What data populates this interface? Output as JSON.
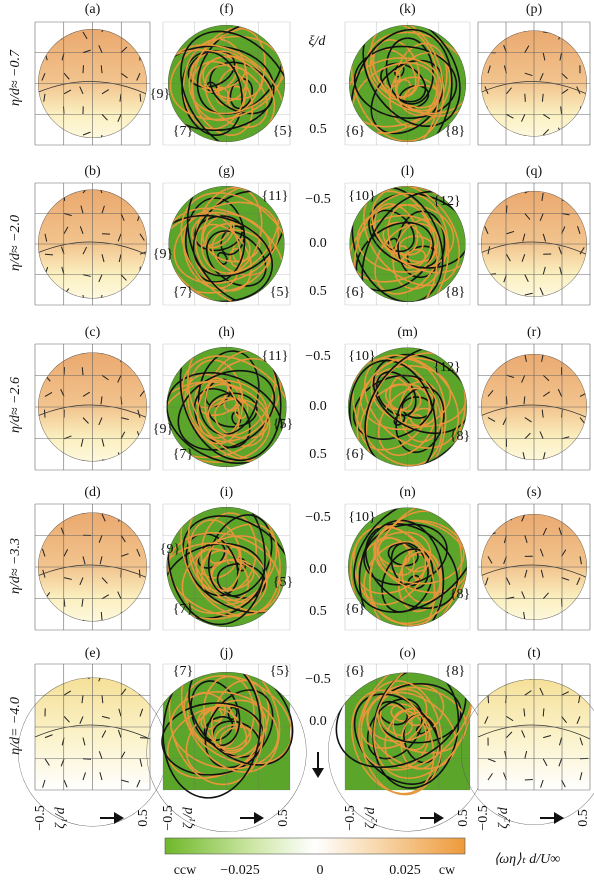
{
  "panels": [
    "(a)",
    "(b)",
    "(c)",
    "(d)",
    "(e)",
    "(f)",
    "(g)",
    "(h)",
    "(i)",
    "(j)",
    "(k)",
    "(l)",
    "(m)",
    "(n)",
    "(o)",
    "(p)",
    "(q)",
    "(r)",
    "(s)",
    "(t)"
  ],
  "row_labels": [
    "η/d≈ −0.7",
    "η/d≈ −2.0",
    "η/d≈ −2.6",
    "η/d≈ −3.3",
    "η/d= −4.0"
  ],
  "annotations": [
    [
      "{9}",
      "{7}",
      "{5}"
    ],
    [
      "{11}",
      "{9}",
      "{7}",
      "{5}"
    ],
    [
      "{11}",
      "{9}",
      "{5}",
      "{7}"
    ],
    [
      "{9}",
      "{5}",
      "{7}"
    ],
    [
      "{7}",
      "{5}"
    ],
    [
      "{6}",
      "{8}"
    ],
    [
      "{10}",
      "{12}",
      "{6}",
      "{8}"
    ],
    [
      "{10}",
      "{12}",
      "{8}",
      "{6}"
    ],
    [
      "{10}",
      "{8}",
      "{6}"
    ],
    [
      "{6}",
      "{8}"
    ]
  ],
  "middle_axis": {
    "title": "ξ/d",
    "rows": [
      [
        "0.0",
        "0.5"
      ],
      [
        "−0.5",
        "0.0",
        "0.5"
      ],
      [
        "−0.5",
        "0.0",
        "0.5"
      ],
      [
        "−0.5",
        "0.0",
        "0.5"
      ],
      [
        "−0.5",
        "0.0"
      ]
    ]
  },
  "bottom_axes": [
    {
      "min": "−0.5",
      "label": "ζ₁/d",
      "max": "0.5"
    },
    {
      "min": "−0.5",
      "label": "ζ₁/d",
      "max": "0.5"
    },
    {
      "min": "−0.5",
      "label": "ζ₂/d",
      "max": "0.5"
    },
    {
      "min": "−0.5",
      "label": "ζ₂/d",
      "max": "0.5"
    }
  ],
  "colorbar": {
    "ticks": [
      "ccw",
      "−0.025",
      "0",
      "0.025",
      "cw"
    ],
    "label": "⟨ωη⟩ₜ d/U∞"
  }
}
